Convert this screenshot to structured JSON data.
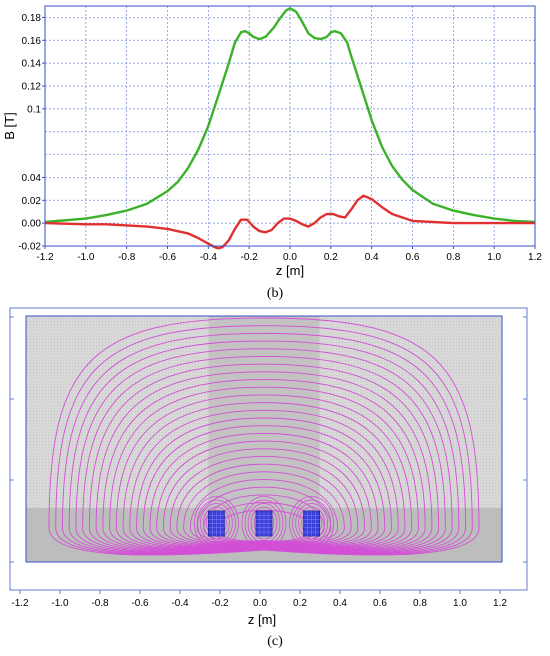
{
  "colors": {
    "green": "#3cb22a",
    "red": "#e03030",
    "frame": "#3a4ec8",
    "field_line": "#d24fd6",
    "coil": "#3a3fd8",
    "gray_upper": "#d9d9d9",
    "gray_lower": "#bdbdbd",
    "gray_column": "#c3c3c3"
  },
  "chart_data": [
    {
      "id": "b",
      "type": "line",
      "panel_label": "(b)",
      "xlabel": "z [m]",
      "ylabel": "B [T]",
      "xlim": [
        -1.2,
        1.2
      ],
      "ylim": [
        -0.02,
        0.19
      ],
      "grid": true,
      "x_ticks": [
        -1.2,
        -1.0,
        -0.8,
        -0.6,
        -0.4,
        -0.2,
        0.0,
        0.2,
        0.4,
        0.6,
        0.8,
        1.0,
        1.2
      ],
      "x_tick_labels": [
        "-1.2",
        "-1.0",
        "-0.8",
        "-0.6",
        "-0.4",
        "-0.2",
        "0.0",
        "0.2",
        "0.4",
        "0.6",
        "0.8",
        "1.0",
        "1.2"
      ],
      "y_ticks": [
        -0.02,
        0.0,
        0.02,
        0.04,
        0.1,
        0.12,
        0.14,
        0.16,
        0.18
      ],
      "y_tick_labels": [
        "-0.02",
        "0.00",
        "0.02",
        "0.04",
        "0.1",
        "0.12",
        "0.14",
        "0.16",
        "0.18"
      ],
      "series": [
        {
          "color": "green",
          "x": [
            -1.2,
            -1.0,
            -0.9,
            -0.8,
            -0.7,
            -0.6,
            -0.55,
            -0.5,
            -0.45,
            -0.4,
            -0.35,
            -0.3,
            -0.27,
            -0.24,
            -0.22,
            -0.2,
            -0.18,
            -0.15,
            -0.12,
            -0.08,
            -0.05,
            -0.02,
            0.0,
            0.03,
            0.06,
            0.09,
            0.12,
            0.15,
            0.18,
            0.2,
            0.22,
            0.25,
            0.28,
            0.3,
            0.35,
            0.4,
            0.45,
            0.5,
            0.55,
            0.6,
            0.7,
            0.8,
            0.9,
            1.0,
            1.1,
            1.2
          ],
          "y": [
            0.001,
            0.004,
            0.007,
            0.011,
            0.017,
            0.028,
            0.036,
            0.048,
            0.064,
            0.085,
            0.112,
            0.14,
            0.158,
            0.167,
            0.168,
            0.166,
            0.163,
            0.161,
            0.163,
            0.171,
            0.179,
            0.186,
            0.188,
            0.185,
            0.176,
            0.166,
            0.162,
            0.161,
            0.163,
            0.167,
            0.168,
            0.166,
            0.158,
            0.146,
            0.118,
            0.09,
            0.067,
            0.05,
            0.038,
            0.029,
            0.017,
            0.011,
            0.007,
            0.004,
            0.002,
            0.001
          ]
        },
        {
          "color": "red",
          "x": [
            -1.2,
            -1.0,
            -0.9,
            -0.8,
            -0.7,
            -0.6,
            -0.5,
            -0.45,
            -0.4,
            -0.37,
            -0.35,
            -0.33,
            -0.3,
            -0.27,
            -0.24,
            -0.21,
            -0.18,
            -0.15,
            -0.12,
            -0.09,
            -0.06,
            -0.03,
            0.0,
            0.03,
            0.06,
            0.09,
            0.12,
            0.15,
            0.18,
            0.21,
            0.24,
            0.27,
            0.3,
            0.33,
            0.36,
            0.4,
            0.45,
            0.5,
            0.6,
            0.7,
            0.8,
            0.9,
            1.0,
            1.1,
            1.2
          ],
          "y": [
            0.0,
            -0.001,
            -0.001,
            -0.002,
            -0.003,
            -0.005,
            -0.009,
            -0.013,
            -0.018,
            -0.021,
            -0.022,
            -0.021,
            -0.015,
            -0.005,
            0.003,
            0.003,
            -0.003,
            -0.007,
            -0.008,
            -0.006,
            0.0,
            0.004,
            0.004,
            0.002,
            -0.001,
            -0.003,
            0.0,
            0.005,
            0.008,
            0.008,
            0.006,
            0.005,
            0.012,
            0.02,
            0.024,
            0.021,
            0.014,
            0.008,
            0.002,
            0.001,
            0.0,
            0.0,
            0.0,
            0.0,
            0.0
          ]
        }
      ]
    },
    {
      "id": "c",
      "type": "field-map",
      "panel_label": "(c)",
      "xlabel": "z [m]",
      "xlim": [
        -1.2,
        1.2
      ],
      "x_ticks": [
        -1.2,
        -1.0,
        -0.8,
        -0.6,
        -0.4,
        -0.2,
        0.0,
        0.2,
        0.4,
        0.6,
        0.8,
        1.0,
        1.2
      ],
      "x_tick_labels": [
        "-1.2",
        "-1.0",
        "-0.8",
        "-0.6",
        "-0.4",
        "-0.2",
        "0.0",
        "0.2",
        "0.4",
        "0.6",
        "0.8",
        "1.0",
        "1.2"
      ],
      "coil_centers_z": [
        -0.24,
        0.0,
        0.24
      ],
      "domain_z": [
        -1.2,
        1.2
      ],
      "upper_column_z": [
        -0.28,
        0.28
      ],
      "field_line_count": 26
    }
  ]
}
